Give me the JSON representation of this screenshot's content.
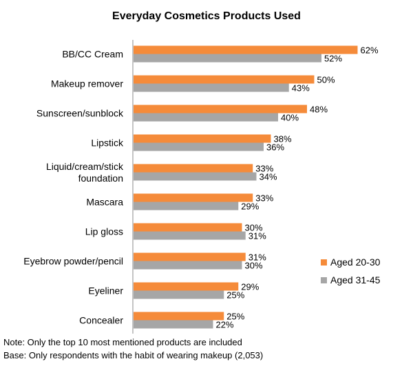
{
  "chart_data": {
    "type": "bar",
    "orientation": "horizontal",
    "title": "Everyday Cosmetics Products Used",
    "categories": [
      [
        "BB/CC Cream"
      ],
      [
        "Makeup remover"
      ],
      [
        "Sunscreen/sunblock"
      ],
      [
        "Lipstick"
      ],
      [
        "Liquid/cream/stick",
        "foundation"
      ],
      [
        "Mascara"
      ],
      [
        "Lip gloss"
      ],
      [
        "Eyebrow powder/pencil"
      ],
      [
        "Eyeliner"
      ],
      [
        "Concealer"
      ]
    ],
    "series": [
      {
        "name": "Aged 20-30",
        "color": "#F58B3A",
        "values": [
          62,
          50,
          48,
          38,
          33,
          33,
          30,
          31,
          29,
          25
        ]
      },
      {
        "name": "Aged 31-45",
        "color": "#A6A6A6",
        "values": [
          52,
          43,
          40,
          36,
          34,
          29,
          31,
          30,
          25,
          22
        ]
      }
    ],
    "value_suffix": "%",
    "xlim": [
      0,
      70
    ],
    "grid": false,
    "legend_position": "right"
  },
  "notes": {
    "note": "Note: Only the top 10 most mentioned products are included",
    "base": "Base: Only respondents with the habit of wearing makeup (2,053)"
  }
}
